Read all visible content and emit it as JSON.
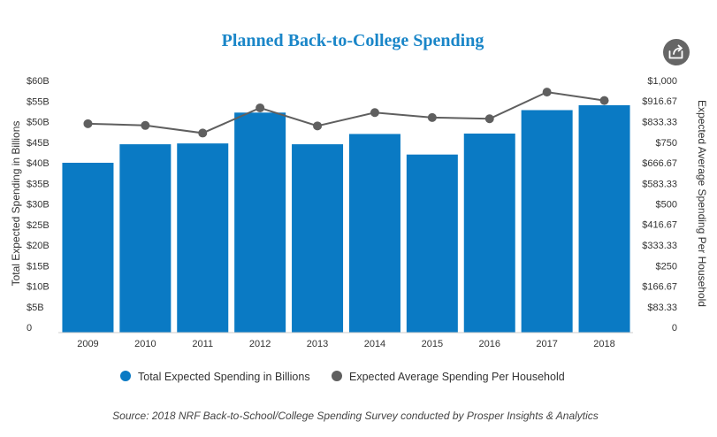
{
  "ui": {
    "share_icon_name": "share-icon"
  },
  "chart_data": {
    "type": "bar",
    "title": "Planned Back-to-College Spending",
    "categories": [
      "2009",
      "2010",
      "2011",
      "2012",
      "2013",
      "2014",
      "2015",
      "2016",
      "2017",
      "2018"
    ],
    "series": [
      {
        "name": "Total Expected Spending in Billions",
        "type": "bar",
        "axis": "left",
        "color": "#0a7ac4",
        "values": [
          40,
          44.5,
          44.7,
          52.2,
          44.5,
          47,
          42,
          47.1,
          52.8,
          54
        ]
      },
      {
        "name": "Expected Average Spending Per Household",
        "type": "line",
        "axis": "right",
        "color": "#5f5f5f",
        "values": [
          825,
          818,
          787,
          889,
          816,
          870,
          850,
          845,
          953,
          919
        ]
      }
    ],
    "y_left": {
      "label": "Total Expected Spending in Billions",
      "ylim": [
        0,
        60
      ],
      "ticks": [
        {
          "v": 0,
          "label": "0"
        },
        {
          "v": 5,
          "label": "$5B"
        },
        {
          "v": 10,
          "label": "$10B"
        },
        {
          "v": 15,
          "label": "$15B"
        },
        {
          "v": 20,
          "label": "$20B"
        },
        {
          "v": 25,
          "label": "$25B"
        },
        {
          "v": 30,
          "label": "$30B"
        },
        {
          "v": 35,
          "label": "$35B"
        },
        {
          "v": 40,
          "label": "$40B"
        },
        {
          "v": 45,
          "label": "$45B"
        },
        {
          "v": 50,
          "label": "$50B"
        },
        {
          "v": 55,
          "label": "$55B"
        },
        {
          "v": 60,
          "label": "$60B"
        }
      ]
    },
    "y_right": {
      "label": "Expected Average Spending Per Household",
      "ylim": [
        0,
        1000
      ],
      "ticks": [
        {
          "v": 0,
          "label": "0"
        },
        {
          "v": 83.33,
          "label": "$83.33"
        },
        {
          "v": 166.67,
          "label": "$166.67"
        },
        {
          "v": 250,
          "label": "$250"
        },
        {
          "v": 333.33,
          "label": "$333.33"
        },
        {
          "v": 416.67,
          "label": "$416.67"
        },
        {
          "v": 500,
          "label": "$500"
        },
        {
          "v": 583.33,
          "label": "$583.33"
        },
        {
          "v": 666.67,
          "label": "$666.67"
        },
        {
          "v": 750,
          "label": "$750"
        },
        {
          "v": 833.33,
          "label": "$833.33"
        },
        {
          "v": 916.67,
          "label": "$916.67"
        },
        {
          "v": 1000,
          "label": "$1,000"
        }
      ]
    },
    "grid": false,
    "legend_position": "bottom",
    "source": "Source: 2018 NRF Back-to-School/College Spending Survey conducted by Prosper Insights & Analytics"
  }
}
